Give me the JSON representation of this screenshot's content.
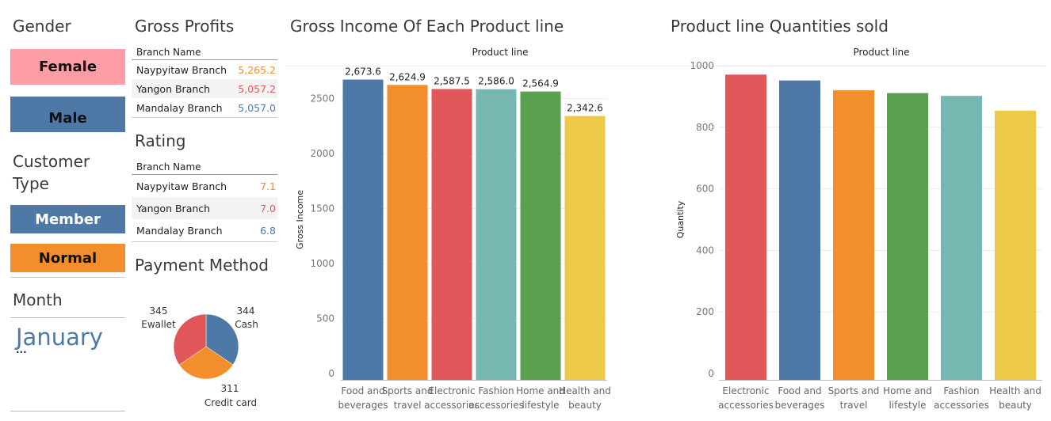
{
  "filters": {
    "gender": {
      "title": "Gender",
      "options": [
        {
          "label": "Female",
          "color": "#FF9DA7"
        },
        {
          "label": "Male",
          "color": "#4E79A7"
        }
      ]
    },
    "customer_type": {
      "title_line1": "Customer",
      "title_line2": "Type",
      "options": [
        {
          "label": "Member",
          "color": "#4E79A7"
        },
        {
          "label": "Normal",
          "color": "#F28E2B"
        }
      ]
    },
    "month": {
      "title": "Month",
      "value": "January",
      "more": "..."
    }
  },
  "gross_profits": {
    "title": "Gross Profits",
    "header": "Branch Name",
    "rows": [
      {
        "branch": "Naypyitaw Branch",
        "value": "5,265.2",
        "color": "#F28E2B"
      },
      {
        "branch": "Yangon Branch",
        "value": "5,057.2",
        "color": "#E15759"
      },
      {
        "branch": "Mandalay Branch",
        "value": "5,057.0",
        "color": "#4E79A7"
      }
    ]
  },
  "rating": {
    "title": "Rating",
    "header": "Branch Name",
    "rows": [
      {
        "branch": "Naypyitaw Branch",
        "value": "7.1",
        "color": "#F28E2B"
      },
      {
        "branch": "Yangon Branch",
        "value": "7.0",
        "color": "#E15759"
      },
      {
        "branch": "Mandalay Branch",
        "value": "6.8",
        "color": "#4E79A7"
      }
    ]
  },
  "payment": {
    "title": "Payment Method",
    "chart_data": {
      "type": "pie",
      "slices": [
        {
          "label": "Cash",
          "value": 344,
          "color": "#4E79A7"
        },
        {
          "label": "Credit card",
          "value": 311,
          "color": "#F28E2B"
        },
        {
          "label": "Ewallet",
          "value": 345,
          "color": "#E15759"
        }
      ]
    }
  },
  "chart_data": [
    {
      "type": "bar",
      "title": "Gross Income Of Each Product line",
      "header": "Product line",
      "ylabel": "Gross Income",
      "ylim": [
        0,
        2800
      ],
      "yticks": [
        0,
        500,
        1000,
        1500,
        2000,
        2500
      ],
      "categories": [
        [
          "Food and",
          "beverages"
        ],
        [
          "Sports and",
          "travel"
        ],
        [
          "Electronic",
          "accessories"
        ],
        [
          "Fashion",
          "accessories"
        ],
        [
          "Home and",
          "lifestyle"
        ],
        [
          "Health and",
          "beauty"
        ]
      ],
      "values": [
        2673.6,
        2624.9,
        2587.5,
        2586.0,
        2564.9,
        2342.6
      ],
      "value_labels": [
        "2,673.6",
        "2,624.9",
        "2,587.5",
        "2,586.0",
        "2,564.9",
        "2,342.6"
      ],
      "colors": [
        "#4E79A7",
        "#F28E2B",
        "#E15759",
        "#76B7B2",
        "#59A14F",
        "#EDC948"
      ]
    },
    {
      "type": "bar",
      "title": "Product line Quantities sold",
      "header": "Product line",
      "ylabel": "Quantity",
      "ylim": [
        0,
        1000
      ],
      "yticks": [
        0,
        200,
        400,
        600,
        800,
        1000
      ],
      "categories": [
        [
          "Electronic",
          "accessories"
        ],
        [
          "Food and",
          "beverages"
        ],
        [
          "Sports and",
          "travel"
        ],
        [
          "Home and",
          "lifestyle"
        ],
        [
          "Fashion",
          "accessories"
        ],
        [
          "Health and",
          "beauty"
        ]
      ],
      "values": [
        971,
        952,
        920,
        911,
        902,
        854
      ],
      "colors": [
        "#E15759",
        "#4E79A7",
        "#F28E2B",
        "#59A14F",
        "#76B7B2",
        "#EDC948"
      ]
    }
  ]
}
